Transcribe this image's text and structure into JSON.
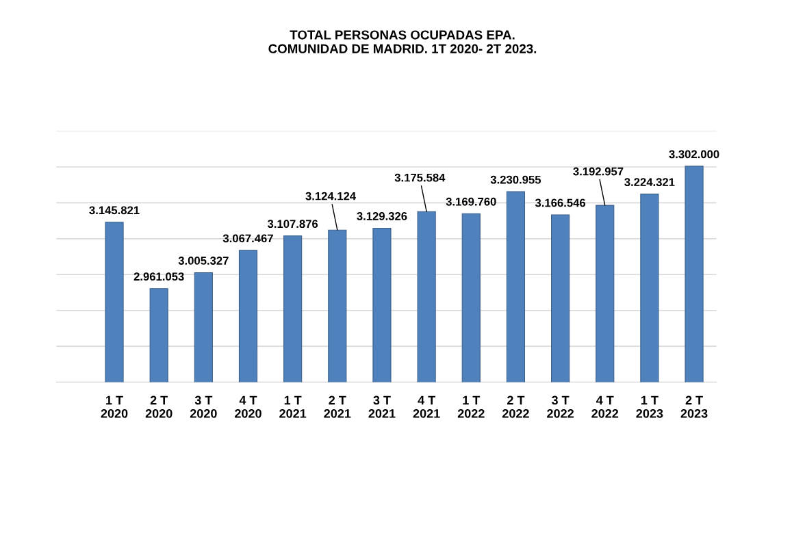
{
  "chart_data": {
    "type": "bar",
    "title": "TOTAL PERSONAS OCUPADAS EPA.\nCOMUNIDAD DE MADRID. 1T 2020- 2T 2023.",
    "categories": [
      "1 T\n2020",
      "2 T\n2020",
      "3 T\n2020",
      "4 T\n2020",
      "1 T\n2021",
      "2 T\n2021",
      "3 T\n2021",
      "4 T\n2021",
      "1 T\n2022",
      "2 T\n2022",
      "3 T\n2022",
      "4 T\n2022",
      "1 T\n2023",
      "2 T\n2023"
    ],
    "values": [
      3145821,
      2961053,
      3005327,
      3067467,
      3107876,
      3124124,
      3129326,
      3175584,
      3169760,
      3230955,
      3166546,
      3192957,
      3224321,
      3302000
    ],
    "value_labels": [
      "3.145.821",
      "2.961.053",
      "3.005.327",
      "3.067.467",
      "3.107.876",
      "3.124.124",
      "3.129.326",
      "3.175.584",
      "3.169.760",
      "3.230.955",
      "3.166.546",
      "3.192.957",
      "3.224.321",
      "3.302.000"
    ],
    "color": "#4f81bd",
    "ylim": [
      2700000,
      3400000
    ],
    "yticks": [
      {
        "value": 2700000,
        "label": null
      },
      {
        "value": 2800000,
        "label": null
      },
      {
        "value": 2900000,
        "label": null
      },
      {
        "value": 3000000,
        "label": null
      },
      {
        "value": 3100000,
        "label": null
      },
      {
        "value": 3200000,
        "label": null
      },
      {
        "value": 3300000,
        "label": null
      },
      {
        "value": 3400000,
        "label": null
      }
    ],
    "grid": "y",
    "tick_labels": "x"
  }
}
